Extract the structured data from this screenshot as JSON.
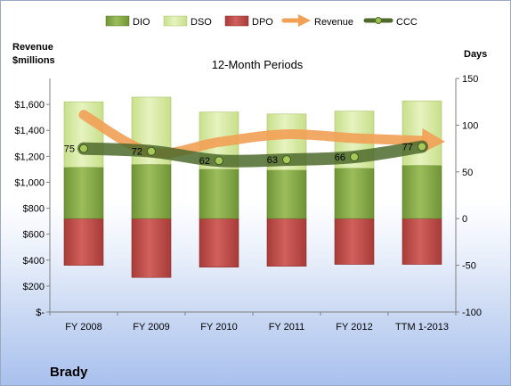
{
  "company": "Brady",
  "chart_data": {
    "type": "bar",
    "title": "12-Month Periods",
    "ylabel_left": [
      "Revenue",
      "$millions"
    ],
    "ylabel_right": "Days",
    "categories": [
      "FY 2008",
      "FY 2009",
      "FY 2010",
      "FY 2011",
      "FY 2012",
      "TTM 1-2013"
    ],
    "y_left": {
      "min": 0,
      "max": 1800,
      "ticks": [
        "$-",
        "$200",
        "$400",
        "$600",
        "$800",
        "$1,000",
        "$1,200",
        "$1,400",
        "$1,600"
      ]
    },
    "y_right": {
      "min": -100,
      "max": 150,
      "ticks": [
        "-100",
        "-50",
        "0",
        "50",
        "100",
        "150"
      ]
    },
    "series": [
      {
        "name": "DIO",
        "kind": "stacked-bar",
        "axis": "right",
        "values": [
          55,
          58,
          53,
          52,
          54,
          57
        ]
      },
      {
        "name": "DSO",
        "kind": "stacked-bar",
        "axis": "right",
        "values": [
          70,
          72,
          61,
          60,
          61,
          69
        ]
      },
      {
        "name": "DPO",
        "kind": "stacked-bar",
        "axis": "right",
        "values": [
          -50,
          -63,
          -52,
          -51,
          -49,
          -49
        ]
      },
      {
        "name": "Revenue",
        "kind": "arrow-line",
        "axis": "left",
        "values": [
          1520,
          1230,
          1310,
          1370,
          1340,
          1320
        ]
      },
      {
        "name": "CCC",
        "kind": "line",
        "axis": "right",
        "values": [
          75,
          72,
          62,
          63,
          66,
          77
        ],
        "labels": [
          "75",
          "72",
          "62",
          "63",
          "66",
          "77"
        ]
      }
    ],
    "legend": {
      "position": "top",
      "items": [
        "DIO",
        "DSO",
        "DPO",
        "Revenue",
        "CCC"
      ]
    },
    "grid": false,
    "colors": {
      "DIO": "#8fb051",
      "DSO": "#d8eba6",
      "DPO": "#c5504d",
      "Revenue": "#f2a055",
      "CCC": "#4e6a2b"
    }
  }
}
